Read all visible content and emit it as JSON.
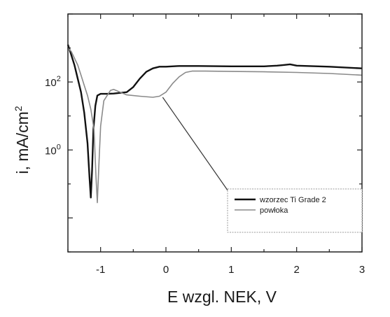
{
  "chart_data": {
    "type": "line",
    "title": "",
    "xlabel": "E wzgl. NEK, V",
    "ylabel_main": "i, mA/cm",
    "ylabel_sup": "2",
    "xlim": [
      -1.5,
      3
    ],
    "ylim_log10": [
      -3,
      4
    ],
    "yscale": "log",
    "grid": false,
    "legend_position": "bottom-right",
    "x_ticks": [
      {
        "value": -1,
        "label": "-1"
      },
      {
        "value": 0,
        "label": "0"
      },
      {
        "value": 1,
        "label": "1"
      },
      {
        "value": 2,
        "label": "2"
      },
      {
        "value": 3,
        "label": "3"
      }
    ],
    "y_ticks": [
      {
        "log10": 2,
        "mantissa": "10",
        "exponent": "2"
      },
      {
        "log10": 0,
        "mantissa": "10",
        "exponent": "0"
      }
    ],
    "series": [
      {
        "name": "wzorzec Ti Grade 2",
        "color": "#111111",
        "x": [
          -1.5,
          -1.45,
          -1.4,
          -1.35,
          -1.3,
          -1.25,
          -1.2,
          -1.17,
          -1.15,
          -1.13,
          -1.11,
          -1.08,
          -1.05,
          -1.0,
          -0.9,
          -0.8,
          -0.6,
          -0.5,
          -0.4,
          -0.3,
          -0.2,
          -0.1,
          0.0,
          0.2,
          0.5,
          1.0,
          1.5,
          1.7,
          1.8,
          1.9,
          2.0,
          2.5,
          3.0
        ],
        "y_log10": [
          3.1,
          2.8,
          2.5,
          2.1,
          1.7,
          1.1,
          0.2,
          -0.8,
          -1.4,
          -0.6,
          0.6,
          1.3,
          1.6,
          1.65,
          1.65,
          1.66,
          1.7,
          1.85,
          2.1,
          2.3,
          2.4,
          2.45,
          2.45,
          2.47,
          2.47,
          2.46,
          2.46,
          2.48,
          2.5,
          2.52,
          2.48,
          2.45,
          2.4
        ]
      },
      {
        "name": "powłoka",
        "color": "#8a8a8a",
        "x": [
          -1.5,
          -1.45,
          -1.4,
          -1.35,
          -1.3,
          -1.25,
          -1.2,
          -1.15,
          -1.1,
          -1.07,
          -1.05,
          -1.03,
          -1.0,
          -0.95,
          -0.9,
          -0.85,
          -0.8,
          -0.7,
          -0.6,
          -0.4,
          -0.2,
          -0.1,
          0.0,
          0.1,
          0.2,
          0.3,
          0.4,
          0.6,
          1.0,
          1.5,
          2.0,
          2.5,
          3.0
        ],
        "y_log10": [
          3.0,
          2.9,
          2.7,
          2.5,
          2.2,
          1.9,
          1.6,
          1.2,
          0.6,
          -0.8,
          -1.55,
          -0.6,
          0.7,
          1.45,
          1.6,
          1.75,
          1.78,
          1.7,
          1.62,
          1.58,
          1.55,
          1.58,
          1.7,
          1.95,
          2.15,
          2.28,
          2.32,
          2.32,
          2.31,
          2.3,
          2.28,
          2.25,
          2.2
        ]
      }
    ],
    "annotation_pointer": {
      "x": -0.05,
      "y_log10": 1.55
    }
  }
}
